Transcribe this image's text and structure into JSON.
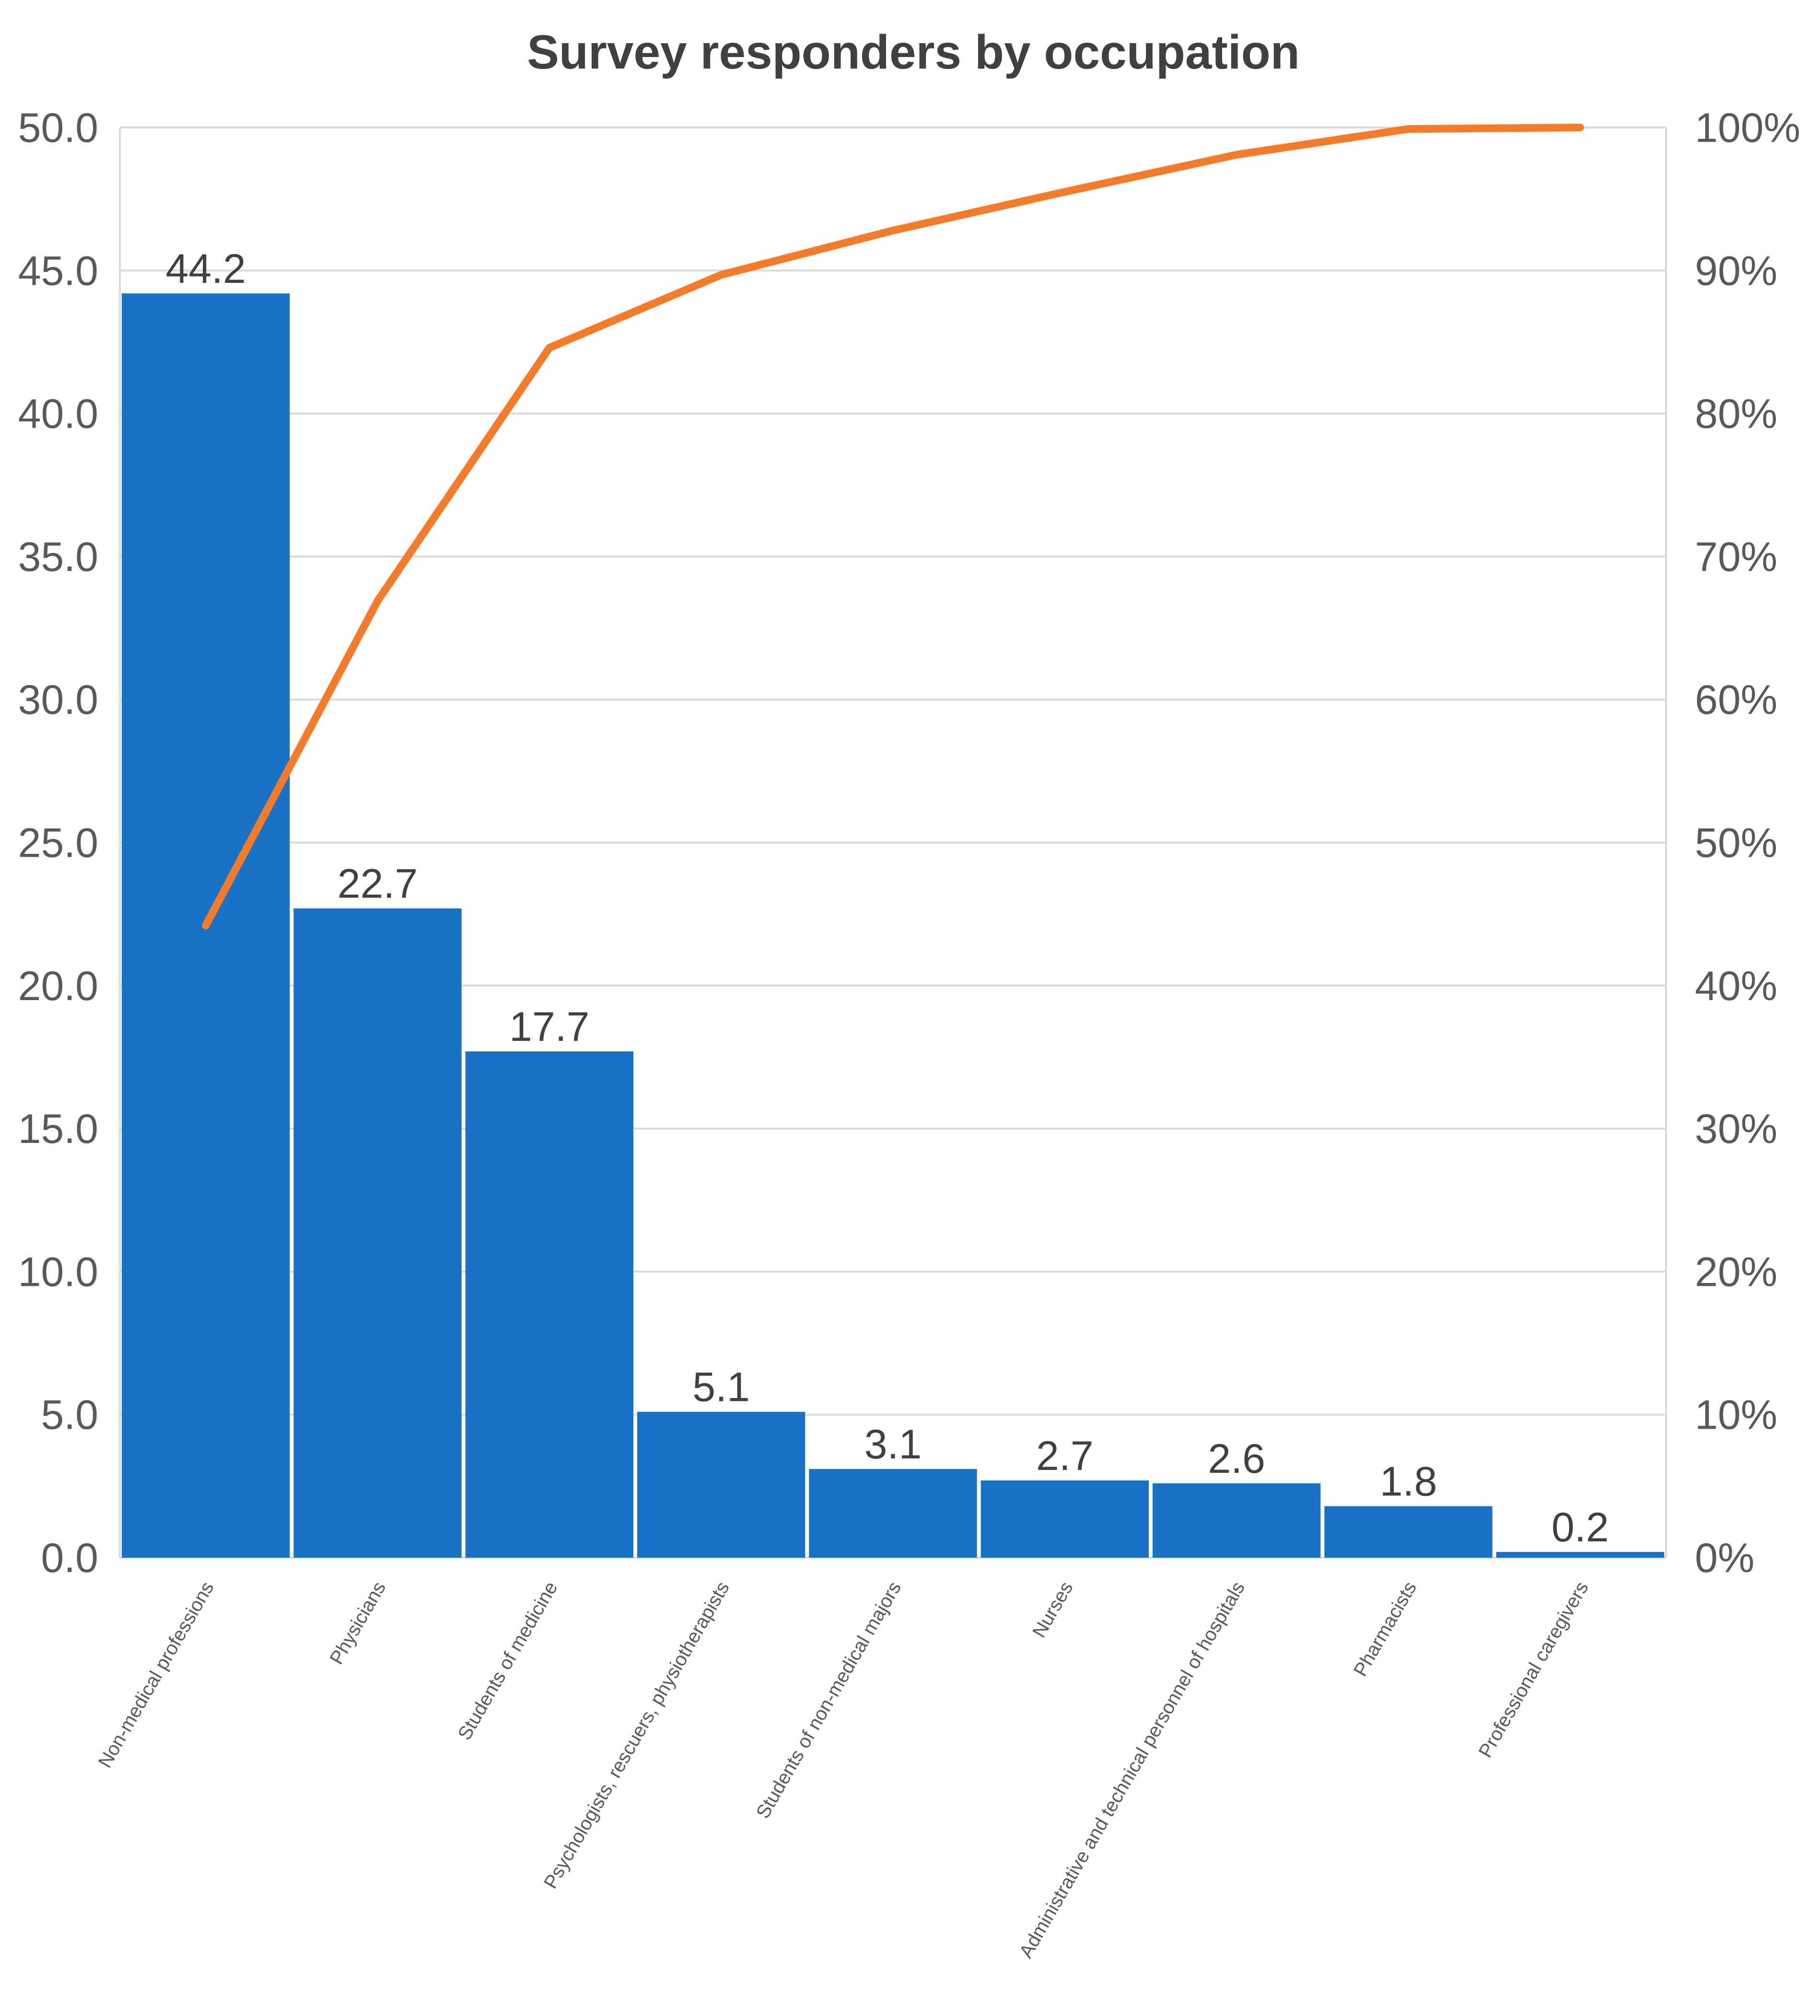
{
  "chart_data": {
    "type": "bar",
    "title": "Survey responders by occupation",
    "xlabel": "",
    "ylabel": "",
    "ylim": [
      0,
      50
    ],
    "y_ticks": [
      "0.0",
      "5.0",
      "10.0",
      "15.0",
      "20.0",
      "25.0",
      "30.0",
      "35.0",
      "40.0",
      "45.0",
      "50.0"
    ],
    "y2lim": [
      0,
      100
    ],
    "y2_ticks": [
      "0%",
      "10%",
      "20%",
      "30%",
      "40%",
      "50%",
      "60%",
      "70%",
      "80%",
      "90%",
      "100%"
    ],
    "grid": true,
    "categories": [
      "Non-medical professions",
      "Physicians",
      "Students of medicine",
      "Psychologists, rescuers, physiotherapists",
      "Students of non-medical majors",
      "Nurses",
      "Administrative and technical personnel of hospitals",
      "Pharmacists",
      "Professional caregivers"
    ],
    "series": [
      {
        "type": "bar",
        "axis": "left",
        "color": "#1872C8",
        "values": [
          44.2,
          22.7,
          17.7,
          5.1,
          3.1,
          2.7,
          2.6,
          1.8,
          0.2
        ],
        "data_labels": [
          "44.2",
          "22.7",
          "17.7",
          "5.1",
          "3.1",
          "2.7",
          "2.6",
          "1.8",
          "0.2"
        ]
      },
      {
        "type": "line",
        "axis": "right",
        "color": "#F47B2A",
        "values": [
          44.2,
          66.9,
          84.6,
          89.7,
          92.8,
          95.5,
          98.1,
          99.9,
          100.0
        ]
      }
    ]
  }
}
